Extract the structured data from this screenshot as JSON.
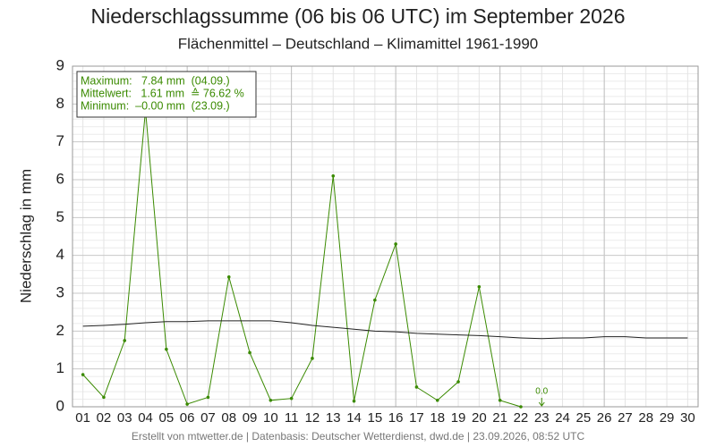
{
  "chart_data": {
    "type": "line",
    "title": "Niederschlagssumme (06 bis 06 UTC) im September 2026",
    "subtitle": "Flächenmittel – Deutschland – Klimamittel 1961-1990",
    "y_label": "Niederschlag in mm",
    "footer": "Erstellt von mtwetter.de | Datenbasis: Deutscher Wetterdienst, dwd.de | 23.09.2026, 08:52 UTC",
    "info": [
      "Maximum:   7.84 mm  (04.09.)",
      "Mittelwert:   1.61 mm  ≙ 76.62 %",
      "Minimum:  –0.00 mm  (23.09.)"
    ],
    "categories": [
      "01",
      "02",
      "03",
      "04",
      "05",
      "06",
      "07",
      "08",
      "09",
      "10",
      "11",
      "12",
      "13",
      "14",
      "15",
      "16",
      "17",
      "18",
      "19",
      "20",
      "21",
      "22",
      "23",
      "24",
      "25",
      "26",
      "27",
      "28",
      "29",
      "30"
    ],
    "series": [
      {
        "name": "Niederschlag",
        "color": "#3a8a00",
        "markers": true,
        "values": [
          0.85,
          0.25,
          1.75,
          7.84,
          1.52,
          0.07,
          0.25,
          3.43,
          1.43,
          0.17,
          0.22,
          1.28,
          6.1,
          0.15,
          2.82,
          4.3,
          0.52,
          0.17,
          0.66,
          3.17,
          0.17,
          0.0,
          null,
          null,
          null,
          null,
          null,
          null,
          null,
          null
        ]
      },
      {
        "name": "Klimamittel",
        "color": "#222222",
        "markers": false,
        "values": [
          2.13,
          2.15,
          2.18,
          2.22,
          2.25,
          2.25,
          2.27,
          2.27,
          2.27,
          2.27,
          2.22,
          2.15,
          2.1,
          2.05,
          2.0,
          1.98,
          1.94,
          1.92,
          1.9,
          1.88,
          1.85,
          1.82,
          1.8,
          1.82,
          1.82,
          1.85,
          1.85,
          1.82,
          1.82,
          1.82
        ]
      }
    ],
    "annotation": {
      "text": "0.0",
      "category": 22
    },
    "ylim": [
      0,
      9
    ],
    "yticks": [
      0,
      1,
      2,
      3,
      4,
      5,
      6,
      7,
      8,
      9
    ],
    "grid": true
  }
}
